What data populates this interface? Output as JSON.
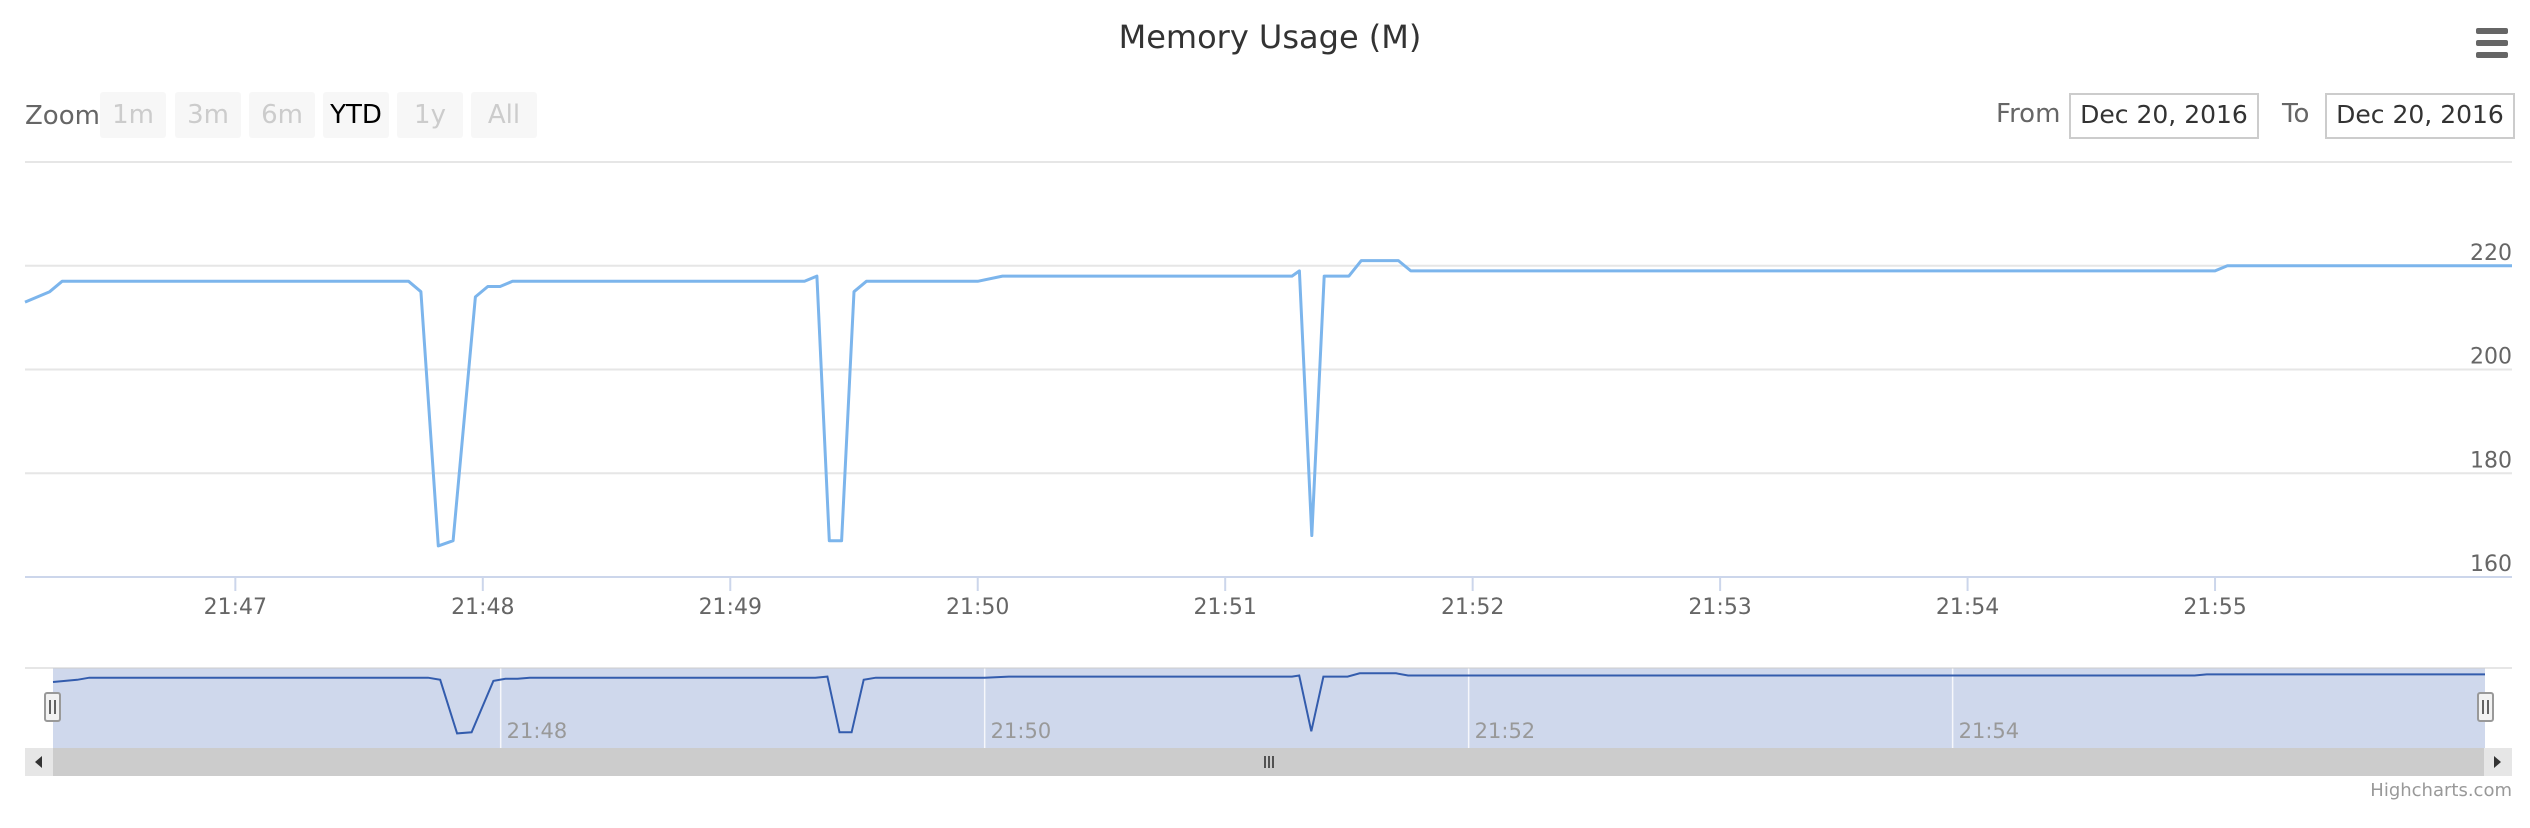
{
  "chart_data": {
    "type": "line",
    "title": "Memory Usage (M)",
    "y_ticks": [
      160,
      180,
      200,
      220
    ],
    "ylim": [
      160,
      240
    ],
    "x_ticks": [
      "21:47",
      "21:48",
      "21:49",
      "21:50",
      "21:51",
      "21:52",
      "21:53",
      "21:54",
      "21:55"
    ],
    "navigator_ticks": [
      "21:48",
      "21:50",
      "21:52",
      "21:54"
    ],
    "xlim": [
      "21:46.15",
      "21:56.20"
    ],
    "grid": true,
    "series": [
      {
        "color": "#7cb5ec",
        "x": [
          "21:46.15",
          "21:46.25",
          "21:46.30",
          "21:47.30",
          "21:47.70",
          "21:47.75",
          "21:47.82",
          "21:47.88",
          "21:47.97",
          "21:48.02",
          "21:48.07",
          "21:48.12",
          "21:49.30",
          "21:49.35",
          "21:49.40",
          "21:49.45",
          "21:49.50",
          "21:49.55",
          "21:50.00",
          "21:50.10",
          "21:51.27",
          "21:51.30",
          "21:51.35",
          "21:51.40",
          "21:51.50",
          "21:51.55",
          "21:51.70",
          "21:51.75",
          "21:55.00",
          "21:55.05",
          "21:56.20"
        ],
        "y": [
          213,
          215,
          217,
          217,
          217,
          215,
          166,
          167,
          214,
          216,
          216,
          217,
          217,
          218,
          167,
          167,
          215,
          217,
          217,
          218,
          218,
          219,
          168,
          218,
          218,
          221,
          221,
          219,
          219,
          220,
          220
        ]
      }
    ]
  },
  "zoom": {
    "label": "Zoom",
    "buttons": [
      {
        "label": "1m",
        "state": "disabled"
      },
      {
        "label": "3m",
        "state": "disabled"
      },
      {
        "label": "6m",
        "state": "disabled"
      },
      {
        "label": "YTD",
        "state": "active"
      },
      {
        "label": "1y",
        "state": "disabled"
      },
      {
        "label": "All",
        "state": "disabled"
      }
    ]
  },
  "range": {
    "from_label": "From",
    "from_value": "Dec 20, 2016",
    "to_label": "To",
    "to_value": "Dec 20, 2016"
  },
  "credits": "Highcharts.com",
  "colors": {
    "series": "#7cb5ec",
    "navigator_line": "#335cad",
    "navigator_mask": "#ccd6eb",
    "scrollbar": "#cccccc",
    "grid": "#e6e6e6"
  },
  "icons": {
    "menu": "hamburger-menu-icon",
    "scroll_left": "arrow-left-icon",
    "scroll_right": "arrow-right-icon",
    "scroll_grip": "grip-icon",
    "handle": "navigator-handle-icon"
  }
}
